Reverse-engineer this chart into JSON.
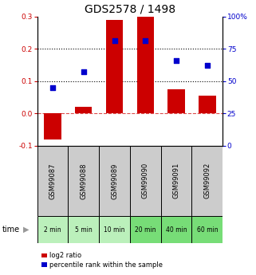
{
  "title": "GDS2578 / 1498",
  "samples": [
    "GSM99087",
    "GSM99088",
    "GSM99089",
    "GSM99090",
    "GSM99091",
    "GSM99092"
  ],
  "time_labels": [
    "2 min",
    "5 min",
    "10 min",
    "20 min",
    "40 min",
    "60 min"
  ],
  "log2_ratio": [
    -0.08,
    0.02,
    0.29,
    0.3,
    0.075,
    0.055
  ],
  "percentile_rank": [
    0.08,
    0.13,
    0.225,
    0.225,
    0.163,
    0.15
  ],
  "ylim_left": [
    -0.1,
    0.3
  ],
  "ylim_right": [
    0,
    100
  ],
  "yticks_left": [
    -0.1,
    0.0,
    0.1,
    0.2,
    0.3
  ],
  "yticks_right": [
    0,
    25,
    50,
    75,
    100
  ],
  "bar_color": "#cc0000",
  "dot_color": "#0000cc",
  "zero_line_color": "#cc0000",
  "grid_color": "#000000",
  "bg_color": "#ffffff",
  "sample_bg": "#cccccc",
  "time_bg_light": "#bbf0bb",
  "time_bg_dark": "#77dd77",
  "title_fontsize": 10,
  "tick_fontsize": 6.5,
  "label_fontsize": 6.5
}
